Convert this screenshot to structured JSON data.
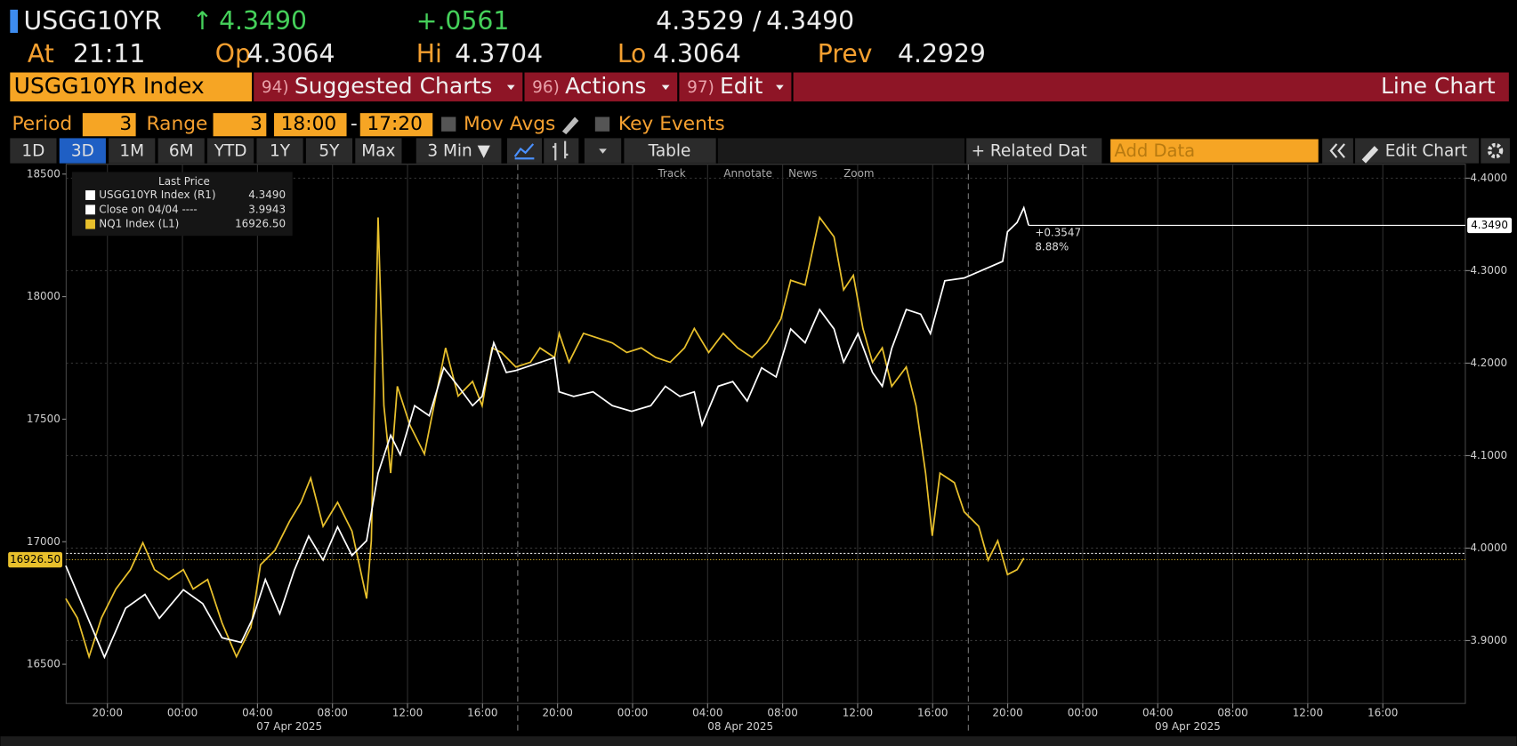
{
  "header": {
    "ticker": "USGG10YR",
    "arrow": "↑",
    "last": "4.3490",
    "change": "+.0561",
    "bid": "4.3529",
    "sep": "/",
    "ask": "4.3490",
    "stats": [
      {
        "label": "At",
        "value": "21:11"
      },
      {
        "label": "Op",
        "value": "4.3064"
      },
      {
        "label": "Hi",
        "value": "4.3704"
      },
      {
        "label": "Lo",
        "value": "4.3064"
      },
      {
        "label": "Prev",
        "value": "4.2929"
      }
    ]
  },
  "menu": {
    "security": "USGG10YR Index",
    "items": [
      {
        "num": "94)",
        "label": "Suggested Charts"
      },
      {
        "num": "96)",
        "label": "Actions"
      },
      {
        "num": "97)",
        "label": "Edit"
      }
    ],
    "chart_kind": "Line Chart"
  },
  "settings": {
    "period_label": "Period",
    "period": "3",
    "range_label": "Range",
    "range": "3",
    "from": "18:00",
    "dash": "-",
    "to": "17:20",
    "mov_avgs": "Mov Avgs",
    "key_events": "Key Events"
  },
  "toolbar": {
    "ranges": [
      "1D",
      "3D",
      "1M",
      "6M",
      "YTD",
      "1Y",
      "5Y",
      "Max"
    ],
    "active": 1,
    "interval": "3 Min ▼",
    "table": "Table",
    "related": "+ Related Dat",
    "add_data": "Add Data",
    "edit_chart": "Edit Chart",
    "chart_tools": [
      "Track",
      "Annotate",
      "News",
      "Zoom"
    ]
  },
  "chart_data": {
    "type": "line",
    "legend_title": "Last Price",
    "series": [
      {
        "name": "USGG10YR Index  (R1)",
        "color": "#ffffff",
        "axis": "y2",
        "last": {
          "value": 4.349,
          "label": "4.3490"
        },
        "x": [
          -6.22,
          -4.16,
          -3.03,
          -2.0,
          -1.23,
          0.05,
          1.08,
          2.11,
          3.13,
          3.75,
          4.42,
          5.19,
          5.96,
          6.73,
          7.5,
          8.27,
          9.04,
          9.82,
          10.43,
          11.1,
          11.61,
          12.38,
          13.16,
          13.93,
          14.7,
          15.47,
          15.98,
          16.6,
          17.27,
          17.78,
          19.84,
          20.09,
          20.86,
          21.89,
          22.92,
          23.95,
          24.97,
          25.75,
          26.52,
          27.29,
          27.7,
          28.57,
          29.34,
          30.11,
          30.88,
          31.65,
          32.43,
          33.2,
          33.97,
          34.74,
          35.25,
          36.02,
          36.79,
          37.31,
          37.82,
          38.59,
          39.36,
          39.88,
          40.65,
          41.68,
          43.73,
          43.99,
          44.5,
          44.86,
          45.12
        ],
        "values": [
          3.981,
          3.882,
          3.935,
          3.95,
          3.924,
          3.955,
          3.94,
          3.903,
          3.898,
          3.924,
          3.966,
          3.929,
          3.976,
          4.013,
          3.987,
          4.023,
          3.992,
          4.008,
          4.081,
          4.122,
          4.101,
          4.154,
          4.143,
          4.195,
          4.175,
          4.154,
          4.164,
          4.222,
          4.19,
          4.192,
          4.206,
          4.169,
          4.164,
          4.169,
          4.154,
          4.148,
          4.154,
          4.175,
          4.164,
          4.169,
          4.133,
          4.175,
          4.18,
          4.159,
          4.195,
          4.185,
          4.237,
          4.222,
          4.258,
          4.237,
          4.201,
          4.232,
          4.19,
          4.175,
          4.216,
          4.258,
          4.253,
          4.232,
          4.289,
          4.292,
          4.31,
          4.342,
          4.352,
          4.368,
          4.349
        ]
      },
      {
        "name": "NQ1 Index  (L1)",
        "color": "#e8c02c",
        "axis": "y",
        "last": {
          "value": 16926.5,
          "label": "16926.50"
        },
        "x": [
          -6.22,
          -5.6,
          -4.98,
          -4.32,
          -3.55,
          -2.77,
          -2.11,
          -1.49,
          -0.72,
          0.05,
          0.57,
          1.34,
          2.11,
          2.88,
          3.65,
          4.16,
          4.93,
          5.71,
          6.32,
          6.84,
          7.5,
          8.27,
          9.04,
          9.82,
          10.07,
          10.43,
          10.74,
          11.1,
          11.46,
          12.13,
          12.9,
          13.41,
          14.03,
          14.7,
          15.47,
          15.98,
          16.5,
          17.01,
          17.78,
          18.55,
          19.06,
          19.84,
          20.09,
          20.61,
          21.38,
          22.15,
          22.92,
          23.69,
          24.46,
          25.23,
          26.0,
          26.77,
          27.29,
          28.06,
          28.83,
          29.6,
          30.37,
          31.14,
          31.91,
          32.43,
          33.2,
          33.97,
          34.74,
          35.25,
          35.77,
          36.28,
          36.79,
          37.31,
          37.82,
          38.59,
          39.11,
          39.62,
          39.98,
          40.39,
          41.16,
          41.68,
          42.45,
          42.96,
          43.47,
          43.99,
          44.5,
          44.86
        ],
        "values": [
          16768,
          16689,
          16531,
          16689,
          16807,
          16886,
          16996,
          16886,
          16846,
          16886,
          16807,
          16846,
          16669,
          16531,
          16650,
          16906,
          16965,
          17083,
          17161,
          17260,
          17063,
          17161,
          17043,
          16768,
          17004,
          18323,
          17555,
          17280,
          17634,
          17476,
          17358,
          17555,
          17791,
          17594,
          17654,
          17555,
          17791,
          17772,
          17713,
          17732,
          17791,
          17752,
          17850,
          17732,
          17850,
          17831,
          17811,
          17772,
          17791,
          17752,
          17732,
          17791,
          17870,
          17772,
          17850,
          17791,
          17752,
          17811,
          17909,
          18067,
          18047,
          18323,
          18244,
          18028,
          18087,
          17870,
          17732,
          17791,
          17634,
          17713,
          17555,
          17280,
          17024,
          17280,
          17241,
          17122,
          17063,
          16925,
          17004,
          16866,
          16886,
          16933
        ]
      }
    ],
    "ref_lines": [
      {
        "name": "Close on 04/04 ----",
        "value": 3.9943,
        "axis": "y2",
        "color": "#ffffff"
      }
    ],
    "annotations": [
      "+0.3547",
      "8.88%"
    ],
    "xlim": [
      -6.2,
      68.4
    ],
    "xticks": [
      {
        "value": -4,
        "label": "20:00"
      },
      {
        "value": 0,
        "label": "00:00"
      },
      {
        "value": 4,
        "label": "04:00"
      },
      {
        "value": 8,
        "label": "08:00"
      },
      {
        "value": 12,
        "label": "12:00"
      },
      {
        "value": 16,
        "label": "16:00"
      },
      {
        "value": 20,
        "label": "20:00"
      },
      {
        "value": 24,
        "label": "00:00"
      },
      {
        "value": 28,
        "label": "04:00"
      },
      {
        "value": 32,
        "label": "08:00"
      },
      {
        "value": 36,
        "label": "12:00"
      },
      {
        "value": 40,
        "label": "16:00"
      },
      {
        "value": 44,
        "label": "20:00"
      },
      {
        "value": 48,
        "label": "00:00"
      },
      {
        "value": 52,
        "label": "04:00"
      },
      {
        "value": 56,
        "label": "08:00"
      },
      {
        "value": 60,
        "label": "12:00"
      },
      {
        "value": 64,
        "label": "16:00"
      }
    ],
    "date_labels": [
      {
        "value": 5.7,
        "label": "07 Apr 2025"
      },
      {
        "value": 29.75,
        "label": "08 Apr 2025"
      },
      {
        "value": 53.6,
        "label": "09 Apr 2025"
      }
    ],
    "ylim": [
      16340,
      18540
    ],
    "yticks": [
      16500,
      17000,
      17500,
      18000,
      18500
    ],
    "y2lim": [
      3.832,
      4.415
    ],
    "y2ticks": [
      {
        "value": 3.9,
        "label": "3.9000"
      },
      {
        "value": 4.0,
        "label": "4.0000"
      },
      {
        "value": 4.1,
        "label": "4.1000"
      },
      {
        "value": 4.2,
        "label": "4.2000"
      },
      {
        "value": 4.3,
        "label": "4.3000"
      },
      {
        "value": 4.4,
        "label": "4.4000"
      }
    ],
    "grid": true
  }
}
